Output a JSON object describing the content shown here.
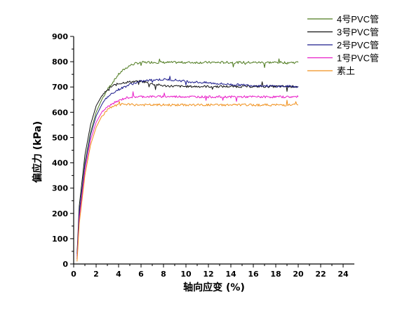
{
  "chart_data": {
    "type": "line",
    "title": "",
    "xlabel": "轴向应变 (%)",
    "ylabel": "偏应力 (kPa)",
    "xlim": [
      0,
      25
    ],
    "ylim": [
      0,
      900
    ],
    "xticks": [
      0,
      2,
      4,
      6,
      8,
      10,
      12,
      14,
      16,
      18,
      20,
      22,
      24
    ],
    "yticks": [
      0,
      100,
      200,
      300,
      400,
      500,
      600,
      700,
      800,
      900
    ],
    "grid": false,
    "legend_position": "top-right",
    "series": [
      {
        "name": "4号PVC管",
        "color": "#4d7a1e",
        "x": [
          0.3,
          0.5,
          1.0,
          1.5,
          2.0,
          2.5,
          3.0,
          3.5,
          4.0,
          4.5,
          5.0,
          5.5,
          6.0,
          7.0,
          8.0,
          10.0,
          12.0,
          14.0,
          16.0,
          18.0,
          20.0
        ],
        "y": [
          20,
          200,
          400,
          520,
          600,
          650,
          690,
          720,
          750,
          770,
          785,
          793,
          797,
          798,
          797,
          797,
          797,
          797,
          797,
          797,
          797
        ]
      },
      {
        "name": "3号PVC管",
        "color": "#111111",
        "x": [
          0.3,
          0.5,
          1.0,
          1.5,
          2.0,
          2.5,
          3.0,
          3.5,
          4.0,
          4.5,
          5.0,
          5.5,
          6.0,
          6.5,
          7.0,
          8.0,
          9.0,
          10.0,
          12.0,
          14.0,
          16.0,
          18.0,
          20.0
        ],
        "y": [
          40,
          230,
          430,
          550,
          625,
          665,
          690,
          705,
          713,
          718,
          720,
          722,
          722,
          718,
          712,
          705,
          703,
          702,
          702,
          702,
          702,
          702,
          702
        ]
      },
      {
        "name": "2号PVC管",
        "color": "#1c1c8c",
        "x": [
          0.3,
          0.5,
          1.0,
          1.5,
          2.0,
          2.5,
          3.0,
          3.5,
          4.0,
          4.5,
          5.0,
          6.0,
          7.0,
          8.0,
          9.0,
          10.0,
          12.0,
          14.0,
          16.0,
          18.0,
          20.0
        ],
        "y": [
          30,
          200,
          390,
          510,
          585,
          630,
          660,
          678,
          690,
          700,
          710,
          722,
          728,
          730,
          728,
          722,
          716,
          710,
          706,
          703,
          702
        ]
      },
      {
        "name": "1号PVC管",
        "color": "#e91ec8",
        "x": [
          0.3,
          0.5,
          1.0,
          1.5,
          2.0,
          2.5,
          3.0,
          3.5,
          4.0,
          4.5,
          5.0,
          6.0,
          8.0,
          10.0,
          12.0,
          14.0,
          16.0,
          18.0,
          20.0
        ],
        "y": [
          20,
          180,
          370,
          490,
          560,
          600,
          620,
          635,
          645,
          655,
          660,
          662,
          662,
          662,
          661,
          661,
          661,
          661,
          661
        ]
      },
      {
        "name": "素土",
        "color": "#f0901c",
        "x": [
          0.3,
          0.5,
          1.0,
          1.5,
          2.0,
          2.5,
          3.0,
          3.5,
          4.0,
          4.5,
          5.0,
          6.0,
          8.0,
          10.0,
          12.0,
          14.0,
          16.0,
          18.0,
          20.0
        ],
        "y": [
          10,
          160,
          350,
          470,
          540,
          585,
          610,
          622,
          630,
          632,
          630,
          629,
          629,
          629,
          629,
          629,
          629,
          629,
          629
        ]
      }
    ]
  }
}
